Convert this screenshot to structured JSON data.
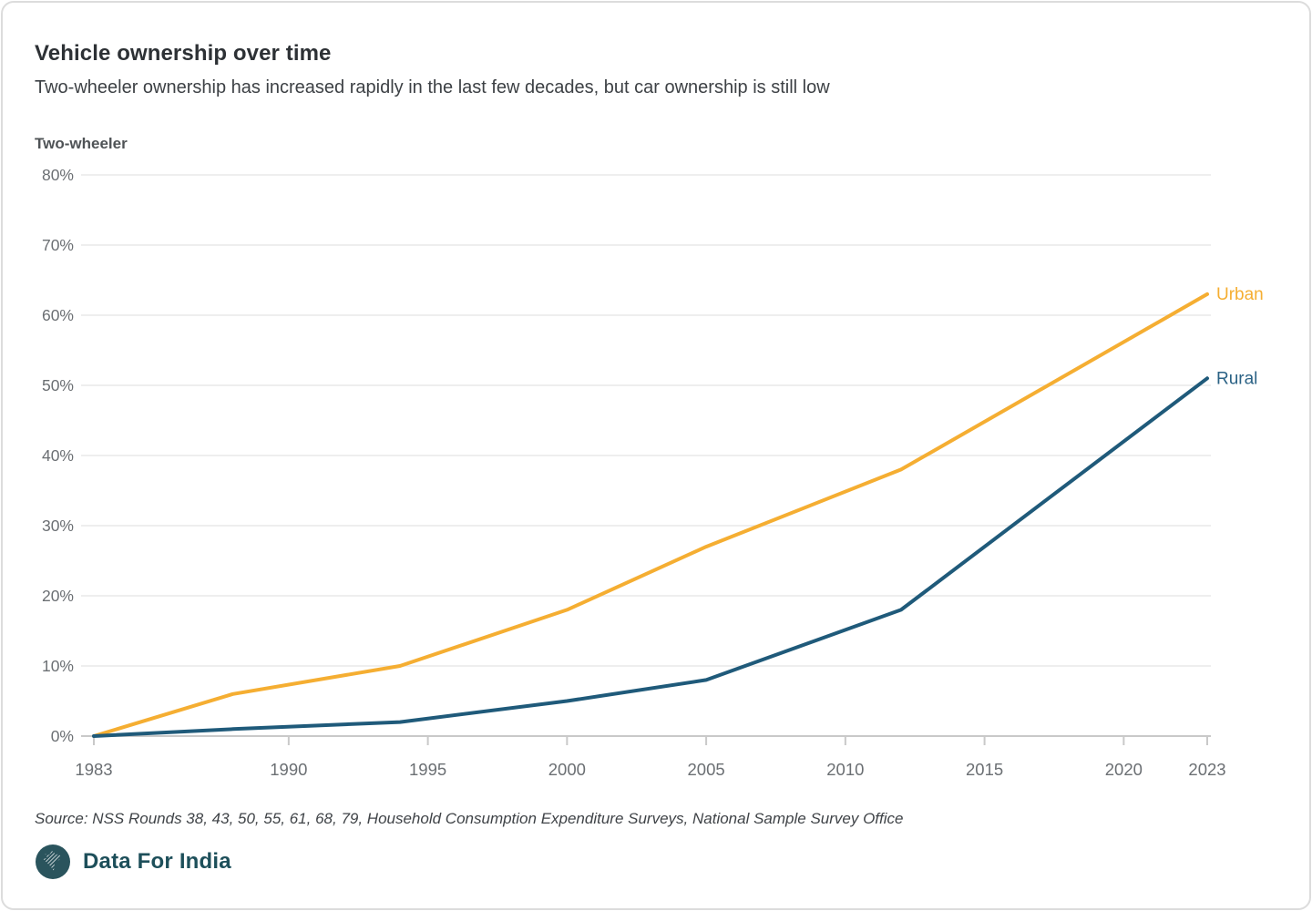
{
  "header": {
    "title": "Vehicle ownership over time",
    "subtitle": "Two-wheeler ownership has increased rapidly in the last few decades, but car ownership is still low"
  },
  "chart_data": {
    "type": "line",
    "panel_label": "Two-wheeler",
    "title": "Vehicle ownership over time",
    "x": [
      1983,
      1988,
      1994,
      2000,
      2005,
      2012,
      2023
    ],
    "series": [
      {
        "name": "Urban",
        "color": "#F5AE32",
        "values": [
          0,
          6,
          10,
          18,
          27,
          38,
          63
        ]
      },
      {
        "name": "Rural",
        "color": "#1F5A7A",
        "label_color": "#2B6285",
        "values": [
          0,
          1,
          2,
          5,
          8,
          18,
          51
        ]
      }
    ],
    "xlim": [
      1983,
      2023
    ],
    "ylim": [
      0,
      80
    ],
    "x_ticks": [
      1983,
      1990,
      1995,
      2000,
      2005,
      2010,
      2015,
      2020,
      2023
    ],
    "y_ticks": [
      0,
      10,
      20,
      30,
      40,
      50,
      60,
      70,
      80
    ],
    "y_tick_suffix": "%",
    "grid": "horizontal",
    "legend_position": "line-end-labels"
  },
  "footer": {
    "source": "Source: NSS Rounds 38, 43, 50, 55, 61, 68, 79, Household Consumption Expenditure Surveys, National Sample Survey Office",
    "brand": "Data For India"
  },
  "colors": {
    "grid": "#e8e8e8",
    "axis": "#c9c9c9",
    "tick_label": "#6b6f73",
    "brand_circle": "#2a545d"
  }
}
